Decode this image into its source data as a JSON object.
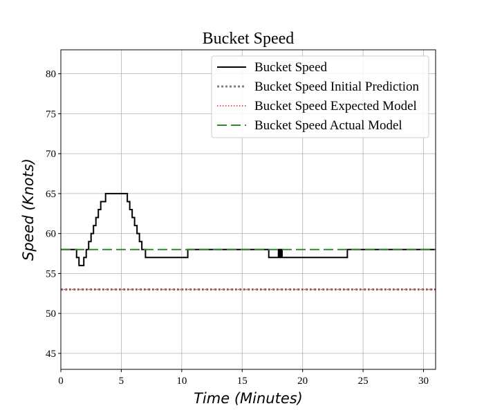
{
  "chart_data": {
    "type": "line",
    "title": "Bucket Speed",
    "xlabel": "Time (Minutes)",
    "ylabel": "Speed (Knots)",
    "xlim": [
      0,
      31
    ],
    "ylim": [
      43,
      83
    ],
    "xticks": [
      0,
      5,
      10,
      15,
      20,
      25,
      30
    ],
    "yticks": [
      45,
      50,
      55,
      60,
      65,
      70,
      75,
      80
    ],
    "grid": true,
    "legend_position": "top-right",
    "series": [
      {
        "name": "Bucket Speed",
        "style": "solid",
        "color": "#000000",
        "step": true,
        "x": [
          0,
          1.3,
          1.5,
          1.9,
          2.1,
          2.3,
          2.5,
          2.7,
          2.9,
          3.1,
          3.3,
          3.5,
          3.7,
          3.9,
          5.5,
          5.7,
          5.9,
          6.1,
          6.3,
          6.5,
          6.7,
          7.0,
          10.5,
          17.2,
          17.9,
          18.0,
          18.1,
          18.2,
          18.3,
          18.4,
          23.7,
          31
        ],
        "y": [
          58,
          57,
          56,
          57,
          58,
          59,
          60,
          61,
          62,
          63,
          64,
          64,
          65,
          65,
          64,
          63,
          62,
          61,
          60,
          59,
          58,
          57,
          58,
          57,
          57,
          58,
          57,
          58,
          57,
          57,
          58,
          58
        ]
      },
      {
        "name": "Bucket Speed Initial Prediction",
        "style": "dotted",
        "color": "#808080",
        "x": [
          0,
          31
        ],
        "y": [
          53,
          53
        ]
      },
      {
        "name": "Bucket Speed Expected Model",
        "style": "dotted",
        "color": "#e41a1c",
        "x": [
          0,
          31
        ],
        "y": [
          53,
          53
        ]
      },
      {
        "name": "Bucket Speed Actual Model",
        "style": "dashed",
        "color": "#2a8a2a",
        "x": [
          0,
          31
        ],
        "y": [
          58,
          58
        ]
      }
    ]
  }
}
